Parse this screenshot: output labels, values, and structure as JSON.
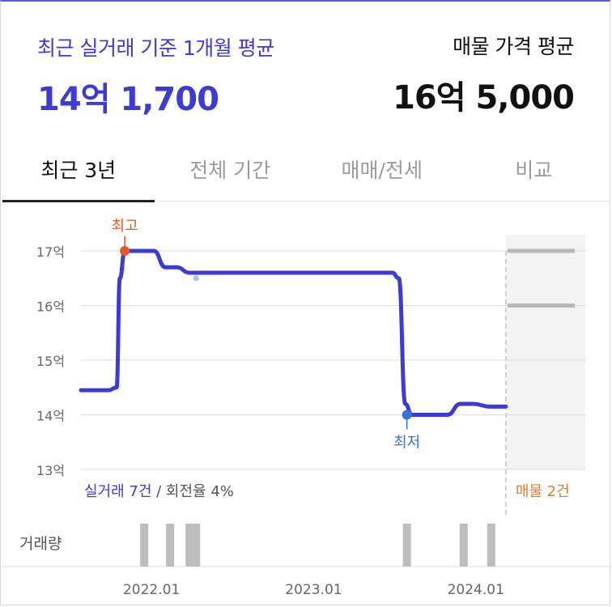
{
  "header": {
    "recent_label": "최근 실거래 기준 1개월 평균",
    "recent_price": "14억 1,700",
    "listing_label": "매물 가격 평균",
    "listing_price": "16억 5,000"
  },
  "tabs": [
    {
      "label": "최근 3년",
      "active": true
    },
    {
      "label": "전체 기간",
      "active": false
    },
    {
      "label": "매매/전세",
      "active": false
    },
    {
      "label": "비교",
      "active": false
    }
  ],
  "colors": {
    "accent": "#3d3bd4",
    "high": "#e0572a",
    "low": "#3a6fe0",
    "listing": "#e87a2a",
    "bar": "#bdbdbd"
  },
  "chart_data": {
    "type": "line",
    "y_ticks": [
      "13억",
      "14억",
      "15억",
      "16억",
      "17억"
    ],
    "ylim": [
      13,
      17.5
    ],
    "x_ticks": [
      "2022.01",
      "2023.01",
      "2024.01"
    ],
    "xlim": [
      2021.58,
      2024.69
    ],
    "series": [
      {
        "x": [
          2021.58,
          2021.75,
          2021.8,
          2021.82,
          2021.85,
          2021.95,
          2022.03,
          2022.1,
          2022.17,
          2022.25,
          2022.4,
          2023.0,
          2023.5,
          2023.54,
          2023.58,
          2023.62,
          2023.7,
          2023.84,
          2023.92,
          2024.0,
          2024.1,
          2024.2
        ],
        "y": [
          14.45,
          14.45,
          14.5,
          16.5,
          17.0,
          17.0,
          17.0,
          16.7,
          16.7,
          16.6,
          16.6,
          16.6,
          16.6,
          16.5,
          14.2,
          14.0,
          14.0,
          14.0,
          14.2,
          14.2,
          14.15,
          14.15
        ]
      }
    ],
    "high": {
      "label": "최고",
      "x": 2021.85,
      "y": 17.0
    },
    "low": {
      "label": "최저",
      "x": 2023.59,
      "y": 14.0
    },
    "listing_lines": [
      17.0,
      16.0
    ],
    "listing_start_x": 2024.2,
    "summary": {
      "trades": "실거래 7건",
      "rate": " / 회전율 4%",
      "listings": "매물 2건"
    },
    "volume_label": "거래량",
    "volume_x": [
      2021.97,
      2022.13,
      2022.25,
      2022.29,
      2023.59,
      2023.94,
      2024.11
    ]
  }
}
